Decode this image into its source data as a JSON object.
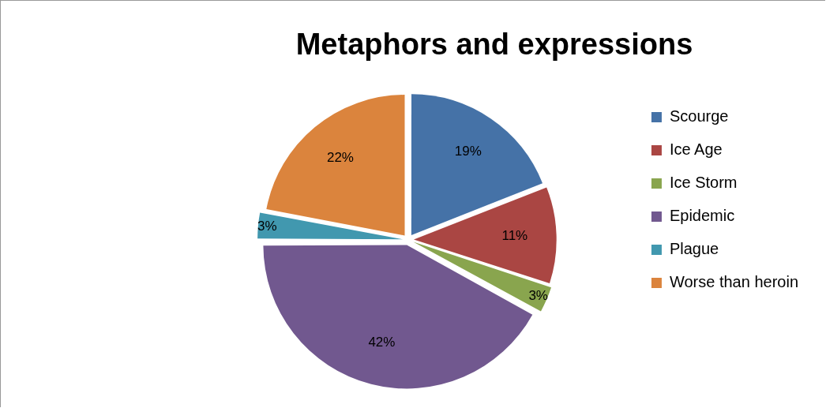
{
  "chart_data": {
    "type": "pie",
    "title": "Metaphors and expressions",
    "categories": [
      "Scourge",
      "Ice Age",
      "Ice Storm",
      "Epidemic",
      "Plague",
      "Worse than heroin"
    ],
    "values": [
      19,
      11,
      3,
      42,
      3,
      22
    ],
    "colors": [
      "#4572a7",
      "#aa4643",
      "#89a54e",
      "#71588f",
      "#4198af",
      "#db843d"
    ],
    "value_labels": [
      "19%",
      "11%",
      "3%",
      "42%",
      "3%",
      "22%"
    ],
    "legend": "right"
  }
}
